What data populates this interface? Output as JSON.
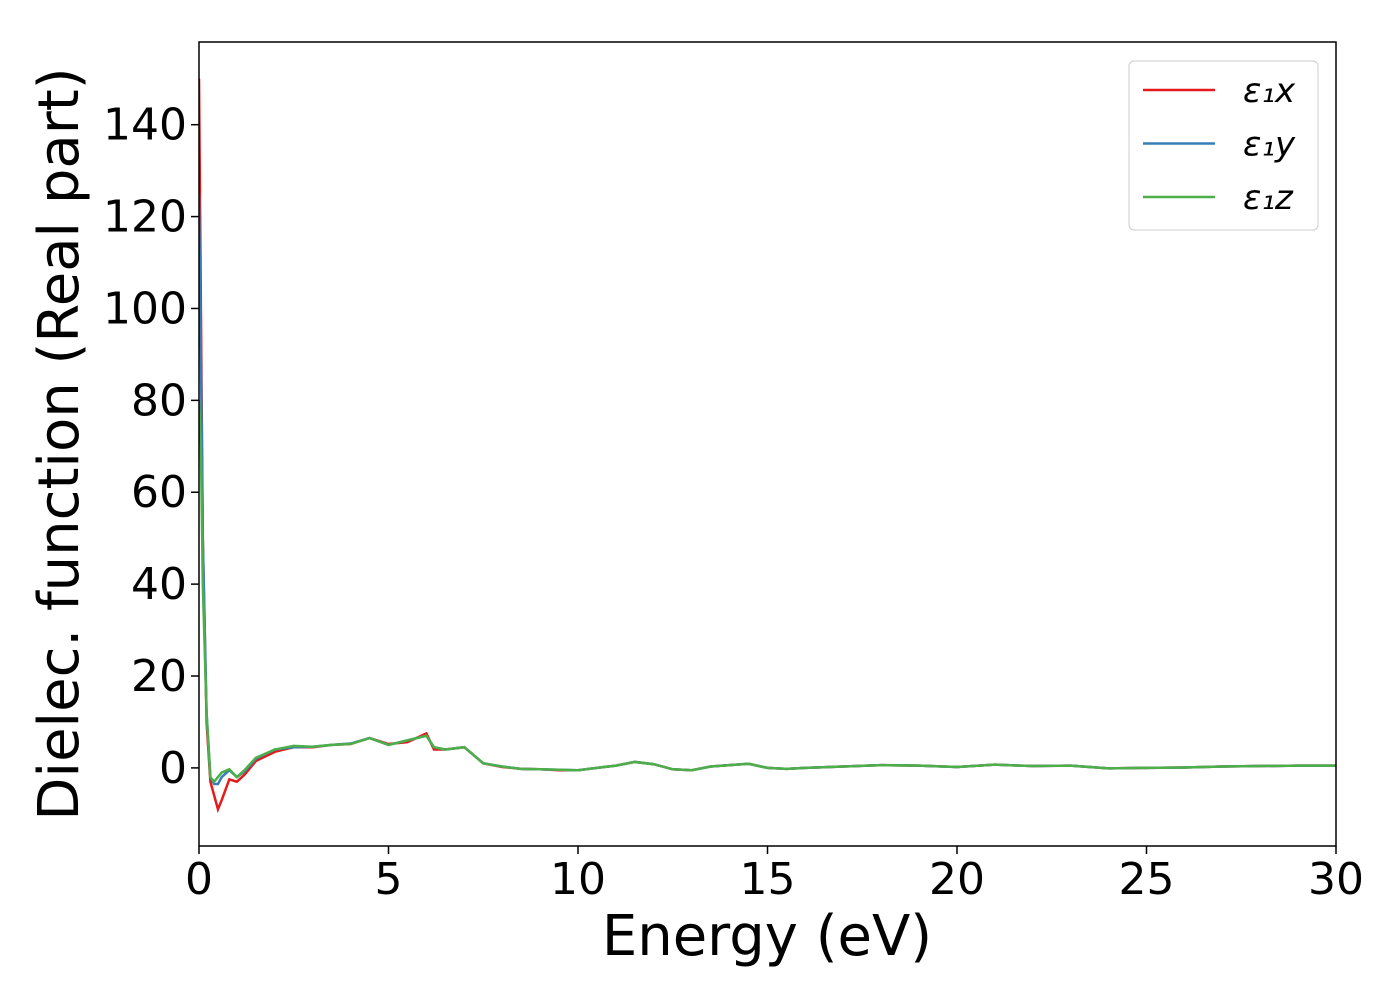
{
  "chart_data": {
    "type": "line",
    "x_label": "Energy (eV)",
    "y_label": "Dielec. function (Real part)",
    "x": [
      0,
      0.05,
      0.1,
      0.2,
      0.3,
      0.4,
      0.5,
      0.6,
      0.8,
      1.0,
      1.2,
      1.5,
      2,
      2.5,
      3,
      3.5,
      4,
      4.5,
      5,
      5.5,
      6,
      6.2,
      6.5,
      7,
      7.5,
      8,
      8.5,
      9,
      9.5,
      10,
      10.5,
      11,
      11.5,
      12,
      12.5,
      13,
      13.5,
      14,
      14.5,
      15,
      15.5,
      16,
      17,
      18,
      19,
      20,
      21,
      22,
      23,
      24,
      25,
      26,
      27,
      28,
      29,
      30
    ],
    "series": [
      {
        "name": "ε₁x",
        "color": "#e41a1c",
        "values": [
          150,
          100,
          50,
          10,
          -3,
          -6,
          -9,
          -7,
          -2.5,
          -3,
          -1.5,
          1.5,
          3.5,
          4.5,
          4.5,
          5,
          5.2,
          6.5,
          5.2,
          5.6,
          7.5,
          4,
          4,
          4.5,
          1,
          0.2,
          -0.2,
          -0.3,
          -0.5,
          -0.5,
          0,
          0.5,
          1.3,
          0.8,
          -0.3,
          -0.5,
          0.3,
          0.6,
          0.9,
          0,
          -0.2,
          0,
          0.3,
          0.6,
          0.5,
          0.2,
          0.7,
          0.4,
          0.5,
          -0.1,
          0,
          0.1,
          0.3,
          0.4,
          0.5,
          0.5
        ]
      },
      {
        "name": "ε₁y",
        "color": "#377eb8",
        "values": [
          125,
          90,
          50,
          12,
          -2,
          -3.5,
          -3.5,
          -2,
          -0.5,
          -2,
          -0.8,
          2,
          4,
          4.5,
          4.6,
          5,
          5.3,
          6.5,
          5,
          6,
          7,
          4.5,
          4,
          4.5,
          1,
          0.3,
          -0.2,
          -0.3,
          -0.4,
          -0.5,
          0,
          0.5,
          1.3,
          0.8,
          -0.3,
          -0.5,
          0.3,
          0.6,
          0.9,
          0,
          -0.2,
          0,
          0.3,
          0.6,
          0.5,
          0.2,
          0.7,
          0.4,
          0.5,
          -0.1,
          0,
          0.1,
          0.3,
          0.4,
          0.5,
          0.5
        ]
      },
      {
        "name": "ε₁z",
        "color": "#4daf4a",
        "values": [
          80,
          70,
          40,
          12,
          -2,
          -3,
          -2,
          -1,
          -0.3,
          -2,
          -0.5,
          2.2,
          4,
          4.8,
          4.6,
          5,
          5.2,
          6.5,
          5,
          6,
          7,
          4.5,
          4,
          4.5,
          1,
          0.3,
          -0.2,
          -0.3,
          -0.4,
          -0.5,
          0,
          0.5,
          1.3,
          0.8,
          -0.3,
          -0.5,
          0.3,
          0.6,
          0.9,
          0,
          -0.2,
          0,
          0.3,
          0.6,
          0.5,
          0.2,
          0.7,
          0.4,
          0.5,
          -0.1,
          0,
          0.1,
          0.3,
          0.4,
          0.5,
          0.5
        ]
      }
    ],
    "xlim": [
      0,
      30
    ],
    "xticks": [
      0,
      5,
      10,
      15,
      20,
      25,
      30
    ],
    "ylim": [
      -17,
      158
    ],
    "yticks": [
      0,
      20,
      40,
      60,
      80,
      100,
      120,
      140
    ],
    "grid": false,
    "legend": "upper right"
  }
}
